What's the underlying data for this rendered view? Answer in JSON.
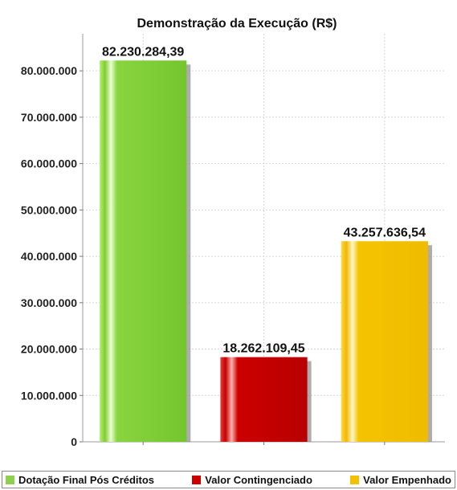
{
  "chart_data": {
    "type": "bar",
    "title": "Demonstração da Execução (R$)",
    "categories": [
      "Dotação Final Pós Créditos",
      "Valor Contingenciado",
      "Valor Empenhado"
    ],
    "values": [
      82230284.39,
      18262109.45,
      43257636.54
    ],
    "value_labels": [
      "82.230.284,39",
      "18.262.109,45",
      "43.257.636,54"
    ],
    "colors": [
      "#8fd14f",
      "#cc0000",
      "#f2c200"
    ],
    "xlabel": "",
    "ylabel": "",
    "ylim": [
      0,
      88000000
    ],
    "yticks": [
      0,
      10000000,
      20000000,
      30000000,
      40000000,
      50000000,
      60000000,
      70000000,
      80000000
    ],
    "ytick_labels": [
      "0",
      "10.000.000",
      "20.000.000",
      "30.000.000",
      "40.000.000",
      "50.000.000",
      "60.000.000",
      "70.000.000",
      "80.000.000"
    ],
    "grid": true,
    "legend_position": "bottom"
  }
}
